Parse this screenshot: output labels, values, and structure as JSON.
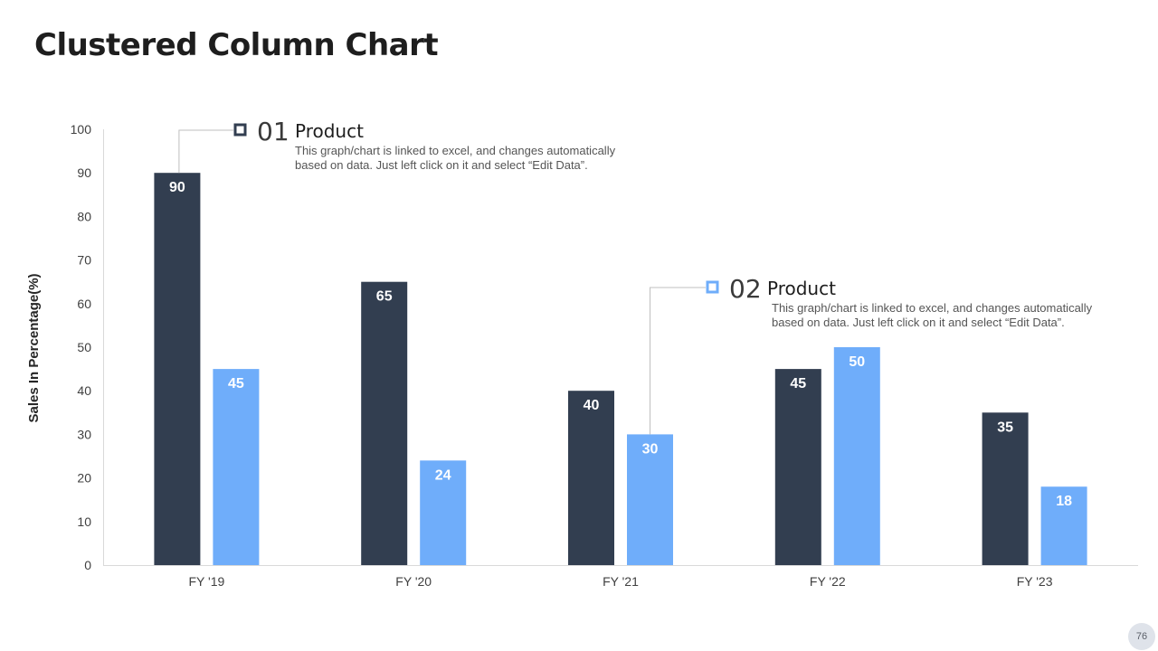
{
  "page": {
    "title": "Clustered Column Chart",
    "page_number": "76"
  },
  "colors": {
    "series1": "#323e50",
    "series2": "#6fadfa",
    "axis": "#d9d9d9",
    "leader": "#bfbfbf"
  },
  "callouts": [
    {
      "number": "01",
      "name": "Product",
      "desc_line1": "This graph/chart is linked to excel, and changes automatically",
      "desc_line2": "based on data. Just left click on it and select “Edit Data”."
    },
    {
      "number": "02",
      "name": "Product",
      "desc_line1": "This graph/chart is linked to excel, and changes automatically",
      "desc_line2": "based on data. Just left click on it and select “Edit Data”."
    }
  ],
  "chart_data": {
    "type": "bar",
    "title": "Clustered Column Chart",
    "xlabel": "",
    "ylabel": "Sales In Percentage(%)",
    "ylim": [
      0,
      100
    ],
    "yticks": [
      0,
      10,
      20,
      30,
      40,
      50,
      60,
      70,
      80,
      90,
      100
    ],
    "grid": false,
    "categories": [
      "FY '19",
      "FY '20",
      "FY '21",
      "FY '22",
      "FY '23"
    ],
    "series": [
      {
        "name": "Product 01",
        "values": [
          90,
          65,
          40,
          45,
          35
        ]
      },
      {
        "name": "Product 02",
        "values": [
          45,
          24,
          30,
          50,
          18
        ]
      }
    ]
  }
}
